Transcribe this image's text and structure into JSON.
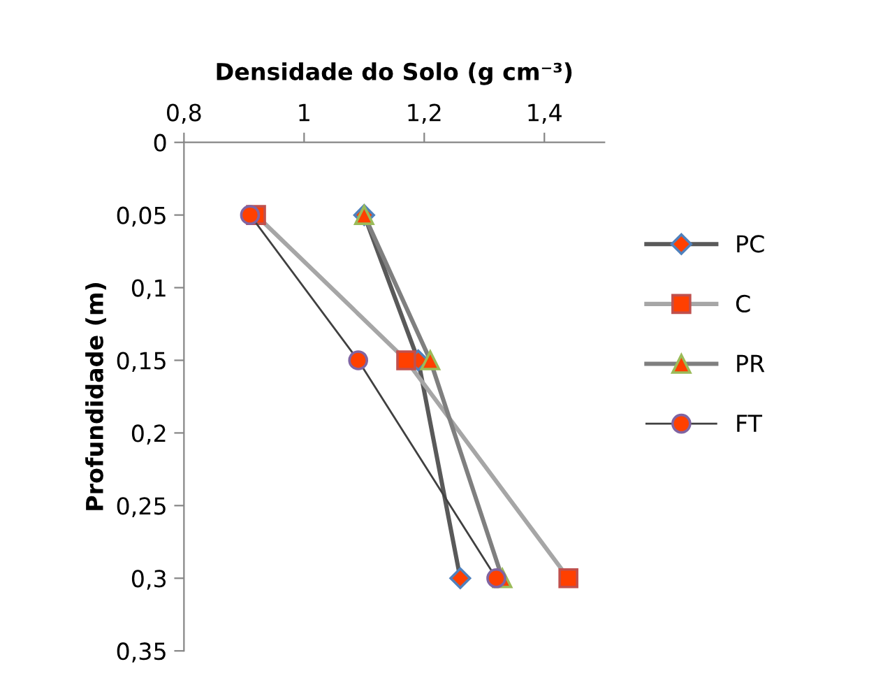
{
  "chart_data": {
    "type": "line",
    "xlabel": "Densidade do Solo (g cm⁻³)",
    "ylabel": "Profundidade (m)",
    "xlim": [
      0.8,
      1.5
    ],
    "xticks": [
      {
        "value": 0.8,
        "label": "0,8"
      },
      1,
      {
        "value": 1.2,
        "label": "1,2"
      },
      {
        "value": 1.4,
        "label": "1,4"
      }
    ],
    "ylim": [
      0.35,
      0
    ],
    "yticks": [
      0,
      {
        "value": 0.05,
        "label": "0,05"
      },
      {
        "value": 0.1,
        "label": "0,1"
      },
      {
        "value": 0.15,
        "label": "0,15"
      },
      {
        "value": 0.2,
        "label": "0,2"
      },
      {
        "value": 0.25,
        "label": "0,25"
      },
      {
        "value": 0.3,
        "label": "0,3"
      },
      {
        "value": 0.35,
        "label": "0,35"
      }
    ],
    "grid": false,
    "legend": "right",
    "series": [
      {
        "name": "PC",
        "color": "#595959",
        "marker": "diamond",
        "x": [
          1.1,
          1.19,
          1.26
        ],
        "values": [
          0.05,
          0.15,
          0.3
        ]
      },
      {
        "name": "C",
        "color": "#a6a6a6",
        "marker": "square",
        "x": [
          0.92,
          1.17,
          1.44
        ],
        "values": [
          0.05,
          0.15,
          0.3
        ]
      },
      {
        "name": "PR",
        "color": "#7f7f7f",
        "marker": "triangle",
        "x": [
          1.1,
          1.21,
          1.33
        ],
        "values": [
          0.05,
          0.15,
          0.3
        ]
      },
      {
        "name": "FT",
        "color": "#404040",
        "marker": "circle",
        "x": [
          0.91,
          1.09,
          1.32
        ],
        "values": [
          0.05,
          0.15,
          0.3
        ]
      }
    ]
  }
}
